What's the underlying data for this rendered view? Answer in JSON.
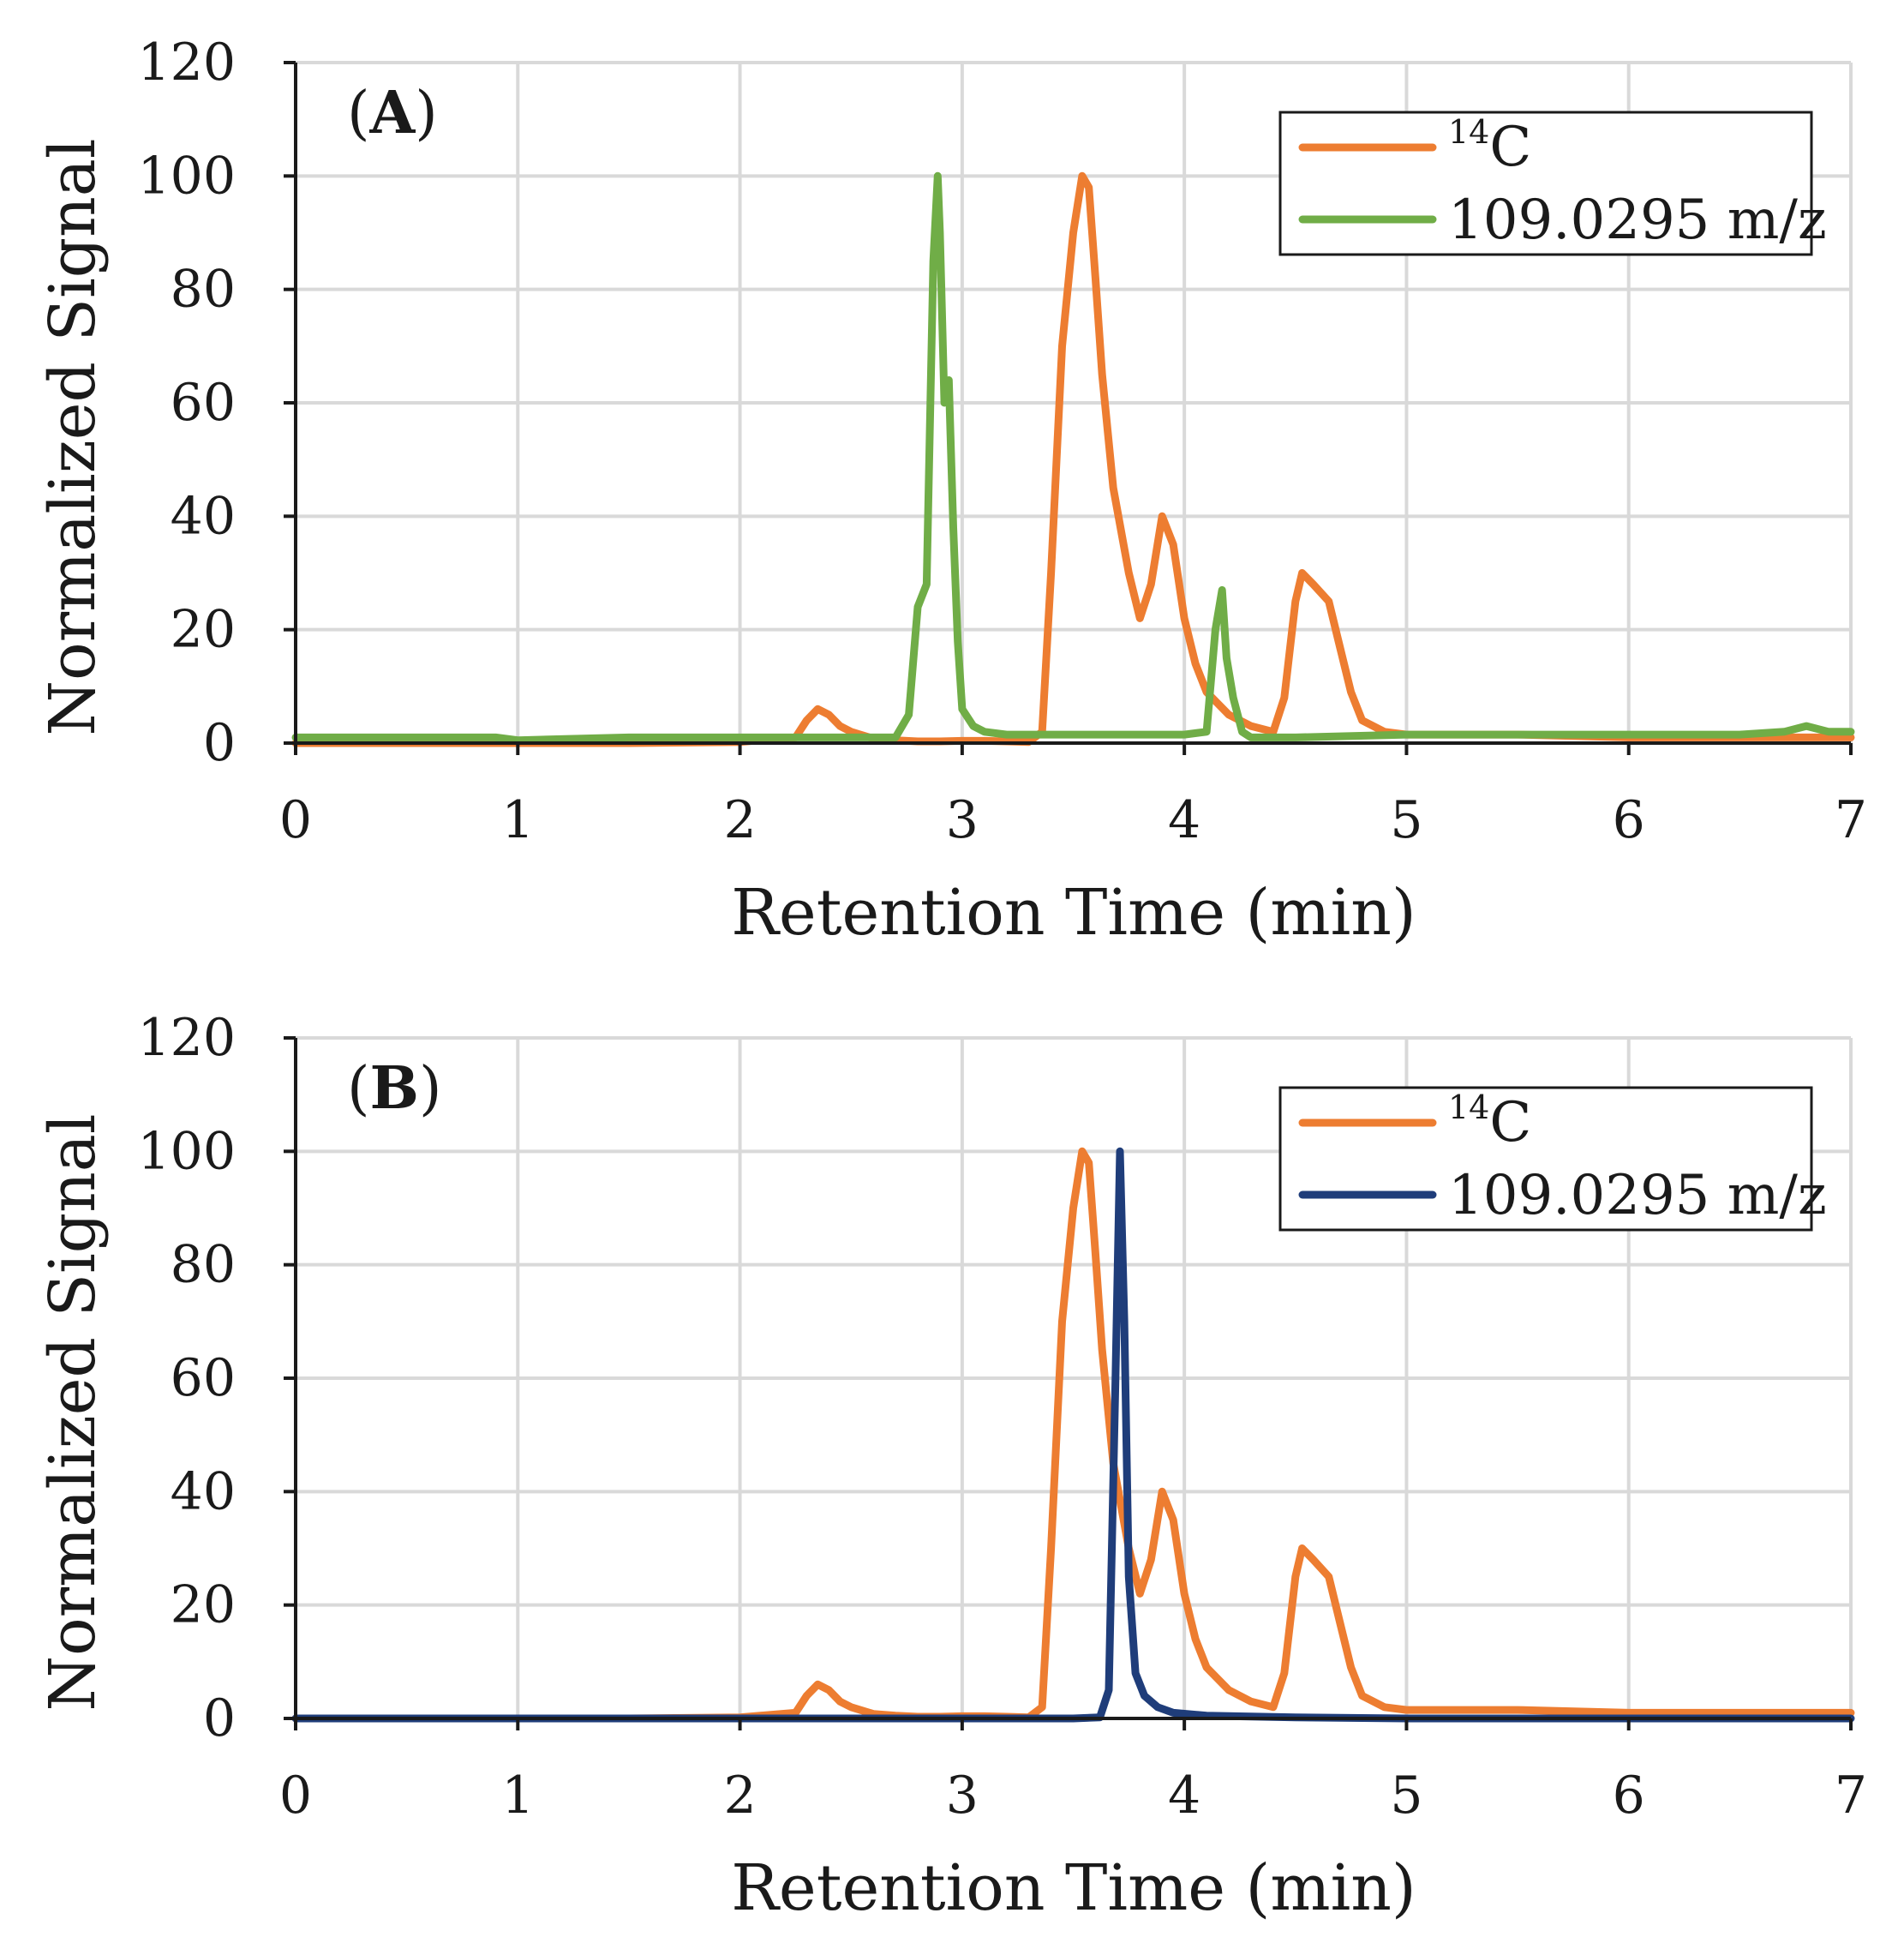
{
  "chart_data": [
    {
      "panel_label": "A",
      "type": "line",
      "xlabel": "Retention Time (min)",
      "ylabel": "Normalized Signal",
      "xlim": [
        0,
        7
      ],
      "ylim": [
        0,
        120
      ],
      "xticks": [
        0,
        1,
        2,
        3,
        4,
        5,
        6,
        7
      ],
      "yticks": [
        0,
        20,
        40,
        60,
        80,
        100,
        120
      ],
      "grid": true,
      "legend_position": "top-right",
      "series": [
        {
          "name": "14C",
          "legend_label": {
            "sup": "14",
            "text": "C"
          },
          "color": "#ED7D31",
          "x": [
            0,
            0.5,
            1.0,
            1.5,
            2.0,
            2.25,
            2.3,
            2.35,
            2.4,
            2.45,
            2.5,
            2.6,
            2.7,
            2.8,
            2.9,
            3.0,
            3.1,
            3.2,
            3.3,
            3.36,
            3.4,
            3.45,
            3.5,
            3.54,
            3.57,
            3.6,
            3.63,
            3.68,
            3.75,
            3.8,
            3.85,
            3.9,
            3.95,
            4.0,
            4.05,
            4.1,
            4.2,
            4.3,
            4.4,
            4.45,
            4.5,
            4.53,
            4.58,
            4.65,
            4.7,
            4.75,
            4.8,
            4.9,
            5.0,
            5.5,
            6.0,
            6.5,
            7.0
          ],
          "y": [
            0,
            0,
            0,
            0,
            0.2,
            1,
            4,
            6,
            5,
            3,
            2,
            0.8,
            0.5,
            0.3,
            0.3,
            0.4,
            0.4,
            0.3,
            0.2,
            2,
            30,
            70,
            90,
            100,
            98,
            82,
            65,
            45,
            30,
            22,
            28,
            40,
            35,
            22,
            14,
            9,
            5,
            3,
            2,
            8,
            25,
            30,
            28,
            25,
            17,
            9,
            4,
            2,
            1.5,
            1.5,
            1,
            1,
            1
          ]
        },
        {
          "name": "109.0295 m/z",
          "color": "#70AD47",
          "x": [
            0,
            0.5,
            0.9,
            1.0,
            1.5,
            2.0,
            2.5,
            2.7,
            2.76,
            2.8,
            2.84,
            2.87,
            2.89,
            2.9,
            2.92,
            2.94,
            2.96,
            2.98,
            3.0,
            3.05,
            3.1,
            3.2,
            3.5,
            4.0,
            4.1,
            4.14,
            4.17,
            4.19,
            4.22,
            4.26,
            4.3,
            4.4,
            4.5,
            5.0,
            5.5,
            6.0,
            6.5,
            6.7,
            6.8,
            6.9,
            7.0
          ],
          "y": [
            1,
            1,
            1,
            0.5,
            1,
            1,
            1,
            1,
            5,
            24,
            28,
            85,
            100,
            90,
            60,
            64,
            38,
            18,
            6,
            3,
            2,
            1.5,
            1.5,
            1.5,
            2,
            20,
            27,
            15,
            8,
            2,
            1,
            1,
            1,
            1.5,
            1.5,
            1.5,
            1.5,
            2,
            3,
            2,
            2
          ]
        }
      ]
    },
    {
      "panel_label": "B",
      "type": "line",
      "xlabel": "Retention Time (min)",
      "ylabel": "Normalized Signal",
      "xlim": [
        0,
        7
      ],
      "ylim": [
        0,
        120
      ],
      "xticks": [
        0,
        1,
        2,
        3,
        4,
        5,
        6,
        7
      ],
      "yticks": [
        0,
        20,
        40,
        60,
        80,
        100,
        120
      ],
      "grid": true,
      "legend_position": "top-right",
      "series": [
        {
          "name": "14C",
          "legend_label": {
            "sup": "14",
            "text": "C"
          },
          "color": "#ED7D31",
          "x": [
            0,
            0.5,
            1.0,
            1.5,
            2.0,
            2.25,
            2.3,
            2.35,
            2.4,
            2.45,
            2.5,
            2.6,
            2.7,
            2.8,
            2.9,
            3.0,
            3.1,
            3.2,
            3.3,
            3.36,
            3.4,
            3.45,
            3.5,
            3.54,
            3.57,
            3.6,
            3.63,
            3.68,
            3.75,
            3.8,
            3.85,
            3.9,
            3.95,
            4.0,
            4.05,
            4.1,
            4.2,
            4.3,
            4.4,
            4.45,
            4.5,
            4.53,
            4.58,
            4.65,
            4.7,
            4.75,
            4.8,
            4.9,
            5.0,
            5.5,
            6.0,
            6.5,
            7.0
          ],
          "y": [
            0,
            0,
            0,
            0,
            0.2,
            1,
            4,
            6,
            5,
            3,
            2,
            0.8,
            0.5,
            0.3,
            0.3,
            0.4,
            0.4,
            0.3,
            0.2,
            2,
            30,
            70,
            90,
            100,
            98,
            82,
            65,
            45,
            30,
            22,
            28,
            40,
            35,
            22,
            14,
            9,
            5,
            3,
            2,
            8,
            25,
            30,
            28,
            25,
            17,
            9,
            4,
            2,
            1.5,
            1.5,
            1,
            1,
            1
          ]
        },
        {
          "name": "109.0295 m/z",
          "color": "#1F3D7A",
          "x": [
            0,
            1,
            2,
            3,
            3.5,
            3.62,
            3.66,
            3.69,
            3.71,
            3.73,
            3.75,
            3.78,
            3.82,
            3.88,
            3.95,
            4.1,
            4.5,
            5.0,
            6.0,
            7.0
          ],
          "y": [
            0,
            0,
            0,
            0,
            0,
            0.2,
            5,
            60,
            100,
            70,
            25,
            8,
            4,
            2,
            1,
            0.5,
            0.2,
            0,
            0,
            0
          ]
        }
      ]
    }
  ]
}
